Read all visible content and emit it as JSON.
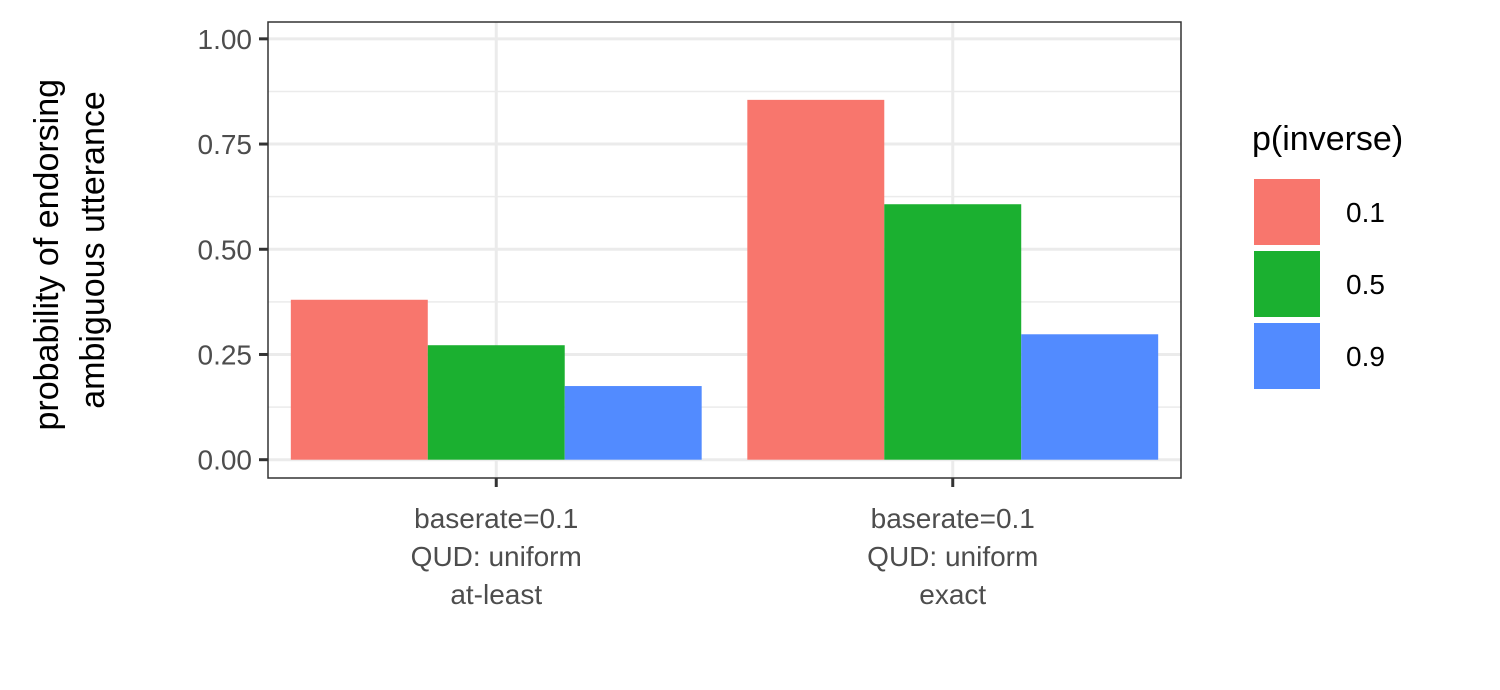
{
  "chart_data": {
    "type": "bar",
    "title": "",
    "xlabel": "",
    "ylabel": [
      "probability of endorsing",
      "ambiguous utterance"
    ],
    "ylim": [
      0,
      1.04
    ],
    "yticks": [
      "0.00",
      "0.25",
      "0.50",
      "0.75",
      "1.00"
    ],
    "ytick_values": [
      0,
      0.25,
      0.5,
      0.75,
      1.0
    ],
    "grid": true,
    "categories": [
      [
        "baserate=0.1",
        "QUD: uniform",
        "at-least"
      ],
      [
        "baserate=0.1",
        "QUD: uniform",
        "exact"
      ]
    ],
    "series": [
      {
        "name": "0.1",
        "color": "#F8766D",
        "values": [
          0.38,
          0.855
        ]
      },
      {
        "name": "0.5",
        "color": "#1BB030",
        "values": [
          0.272,
          0.607
        ]
      },
      {
        "name": "0.9",
        "color": "#528BFF",
        "values": [
          0.175,
          0.298
        ]
      }
    ],
    "legend": {
      "title": "p(inverse)",
      "placement": "right"
    }
  }
}
